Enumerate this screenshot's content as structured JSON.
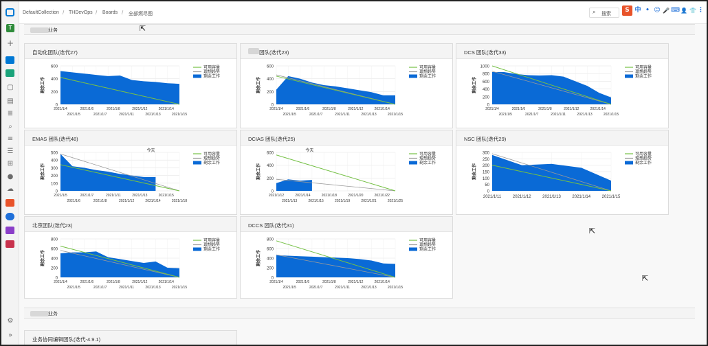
{
  "breadcrumbs": [
    "DefaultCollection",
    "THDevOps",
    "Boards",
    "全部燃尽图"
  ],
  "search": {
    "icon": "search-icon",
    "label": "搜索"
  },
  "ime_toolbar": {
    "logo": "S",
    "lang": "中",
    "items": [
      "•",
      "☺",
      "🎤",
      "⌨",
      "👤",
      "👕",
      "⋮"
    ]
  },
  "rail": {
    "avatar_letter": "T",
    "items": [
      "plus-icon",
      "overview-icon",
      "boards-icon",
      "work-items-icon",
      "backlogs-icon",
      "sprints-icon",
      "queries-icon",
      "delivery-plans-icon",
      "analytics-icon",
      "burndown-icon",
      "feedback-icon",
      "pipelines-icon",
      "repos-icon",
      "artifacts-icon",
      "test-plans-icon",
      "extensions-icon"
    ],
    "settings": "gear-icon",
    "collapse": "collapse-icon"
  },
  "legend": {
    "capacity": "可用容量",
    "ideal": "理想趋势",
    "remaining": "剩余工作"
  },
  "ylabel": "剩余工作",
  "today_label": "今天",
  "colors": {
    "remaining": "#0a6ad6",
    "capacity": "#74c044",
    "ideal": "#9a9a9a"
  },
  "groups": [
    {
      "title": "业务"
    },
    {
      "title": "业务"
    }
  ],
  "cards": [
    {
      "title": "自动化团队(迭代27)",
      "blurred_prefix": false
    },
    {
      "title": "团队(迭代23)",
      "blurred_prefix": true
    },
    {
      "title": "DCS 团队(迭代33)",
      "blurred_prefix": false
    },
    {
      "title": "EMAS 团队(迭代48)",
      "blurred_prefix": false
    },
    {
      "title": "DCIAS 团队(迭代25)",
      "blurred_prefix": false
    },
    {
      "title": "NSC 团队(迭代29)",
      "blurred_prefix": false
    },
    {
      "title": "北京团队(迭代23)",
      "blurred_prefix": false
    },
    {
      "title": "DCCS 团队(迭代31)",
      "blurred_prefix": false
    },
    {
      "title": "业务协同编辑团队(迭代-4.9.1)",
      "blurred_prefix": false
    }
  ],
  "chart_data": [
    {
      "type": "area",
      "ylim": [
        0,
        600
      ],
      "yticks": [
        0,
        200,
        400,
        600
      ],
      "xticks_top": [
        "2021/1/4",
        "2021/1/6",
        "2021/1/8",
        "2021/1/12",
        "2021/1/14"
      ],
      "xticks_bottom": [
        "2021/1/5",
        "2021/1/7",
        "2021/1/11",
        "2021/1/13",
        "2021/1/15"
      ],
      "remaining": [
        520,
        500,
        480,
        460,
        440,
        450,
        380,
        360,
        350,
        330,
        320
      ],
      "capacity": [
        420,
        0
      ],
      "ideal": [
        420,
        0
      ],
      "today": null
    },
    {
      "type": "area",
      "ylim": [
        0,
        600
      ],
      "yticks": [
        0,
        200,
        400,
        600
      ],
      "xticks_top": [
        "2021/1/4",
        "2021/1/6",
        "2021/1/8",
        "2021/1/12",
        "2021/1/14"
      ],
      "xticks_bottom": [
        "2021/1/5",
        "2021/1/7",
        "2021/1/11",
        "2021/1/13",
        "2021/1/15"
      ],
      "remaining": [
        230,
        440,
        400,
        340,
        300,
        280,
        250,
        220,
        190,
        140,
        140
      ],
      "capacity": [
        440,
        0
      ],
      "ideal": [
        460,
        0
      ],
      "today": null
    },
    {
      "type": "area",
      "ylim": [
        0,
        1000
      ],
      "yticks": [
        0,
        200,
        400,
        600,
        800,
        1000
      ],
      "xticks_top": [
        "2021/1/4",
        "2021/1/6",
        "2021/1/8",
        "2021/1/12",
        "2021/1/14"
      ],
      "xticks_bottom": [
        "2021/1/5",
        "2021/1/7",
        "2021/1/11",
        "2021/1/13",
        "2021/1/15"
      ],
      "remaining": [
        840,
        840,
        790,
        760,
        750,
        760,
        720,
        600,
        480,
        300,
        180
      ],
      "capacity": [
        1000,
        0
      ],
      "ideal": [
        860,
        0
      ],
      "today": null
    },
    {
      "type": "area",
      "ylim": [
        0,
        500
      ],
      "yticks": [
        0,
        100,
        200,
        300,
        400,
        500
      ],
      "xticks_top": [
        "2021/1/5",
        "2021/1/7",
        "2021/1/11",
        "2021/1/13",
        "2021/1/15"
      ],
      "xticks_bottom": [
        "2021/1/6",
        "2021/1/8",
        "2021/1/12",
        "2021/1/14",
        "2021/1/18"
      ],
      "remaining": [
        480,
        320,
        300,
        270,
        250,
        220,
        200,
        180,
        180,
        null,
        null
      ],
      "capacity": [
        340,
        0
      ],
      "ideal": [
        480,
        0
      ],
      "today": 7.6
    },
    {
      "type": "area",
      "ylim": [
        0,
        600
      ],
      "yticks": [
        0,
        200,
        400,
        600
      ],
      "xticks_top": [
        "2021/1/12",
        "2021/1/14",
        "2021/1/18",
        "2021/1/20",
        "2021/1/22"
      ],
      "xticks_bottom": [
        "2021/1/13",
        "2021/1/15",
        "2021/1/19",
        "2021/1/21",
        "2021/1/25"
      ],
      "remaining": [
        120,
        180,
        160,
        170,
        null,
        null,
        null,
        null,
        null,
        null,
        null
      ],
      "capacity": [
        560,
        0
      ],
      "ideal": [
        180,
        0
      ],
      "today": 2.8
    },
    {
      "type": "area",
      "ylim": [
        0,
        300
      ],
      "yticks": [
        0,
        50,
        100,
        150,
        200,
        250,
        300
      ],
      "xticks_top": [],
      "xticks_bottom": [
        "2021/1/11",
        "2021/1/12",
        "2021/1/13",
        "2021/1/14",
        "2021/1/15"
      ],
      "remaining": [
        280,
        200,
        210,
        180,
        80
      ],
      "capacity": [
        200,
        0
      ],
      "ideal": [
        290,
        0
      ],
      "today": null
    },
    {
      "type": "area",
      "ylim": [
        0,
        800
      ],
      "yticks": [
        0,
        200,
        400,
        600,
        800
      ],
      "xticks_top": [
        "2021/1/4",
        "2021/1/6",
        "2021/1/8",
        "2021/1/12",
        "2021/1/14"
      ],
      "xticks_bottom": [
        "2021/1/5",
        "2021/1/7",
        "2021/1/11",
        "2021/1/13",
        "2021/1/15"
      ],
      "remaining": [
        500,
        520,
        520,
        540,
        420,
        380,
        340,
        300,
        330,
        200,
        190
      ],
      "capacity": [
        650,
        0
      ],
      "ideal": [
        560,
        0
      ],
      "today": null
    },
    {
      "type": "area",
      "ylim": [
        0,
        800
      ],
      "yticks": [
        0,
        200,
        400,
        600,
        800
      ],
      "xticks_top": [
        "2021/1/4",
        "2021/1/6",
        "2021/1/8",
        "2021/1/12",
        "2021/1/14"
      ],
      "xticks_bottom": [
        "2021/1/5",
        "2021/1/7",
        "2021/1/11",
        "2021/1/13",
        "2021/1/15"
      ],
      "remaining": [
        460,
        450,
        440,
        430,
        420,
        410,
        400,
        380,
        350,
        290,
        280
      ],
      "capacity": [
        760,
        0
      ],
      "ideal": [
        470,
        0
      ],
      "today": null
    }
  ]
}
